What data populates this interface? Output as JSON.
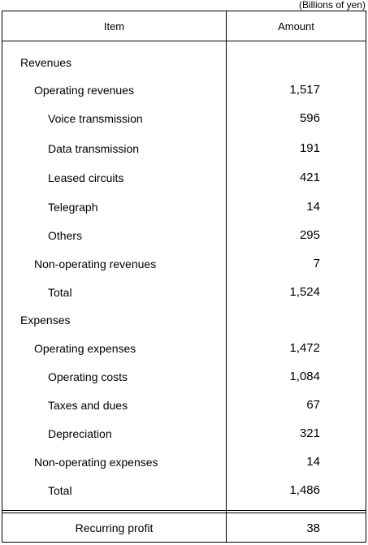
{
  "unit_note": "(Billions of yen)",
  "header": {
    "item": "Item",
    "amount": "Amount"
  },
  "rows": [
    {
      "label": "Revenues",
      "amount": ""
    },
    {
      "label": "Operating revenues",
      "amount": "1,517"
    },
    {
      "label": "Voice transmission",
      "amount": "596"
    },
    {
      "label": "Data transmission",
      "amount": "191"
    },
    {
      "label": "Leased circuits",
      "amount": "421"
    },
    {
      "label": "Telegraph",
      "amount": "14"
    },
    {
      "label": "Others",
      "amount": "295"
    },
    {
      "label": "Non-operating revenues",
      "amount": "7"
    },
    {
      "label": "Total",
      "amount": "1,524"
    },
    {
      "label": "Expenses",
      "amount": ""
    },
    {
      "label": "Operating expenses",
      "amount": "1,472"
    },
    {
      "label": "Operating costs",
      "amount": "1,084"
    },
    {
      "label": "Taxes and dues",
      "amount": "67"
    },
    {
      "label": "Depreciation",
      "amount": "321"
    },
    {
      "label": "Non-operating expenses",
      "amount": "14"
    },
    {
      "label": "Total",
      "amount": "1,486"
    }
  ],
  "footer": {
    "label": "Recurring profit",
    "amount": "38"
  }
}
